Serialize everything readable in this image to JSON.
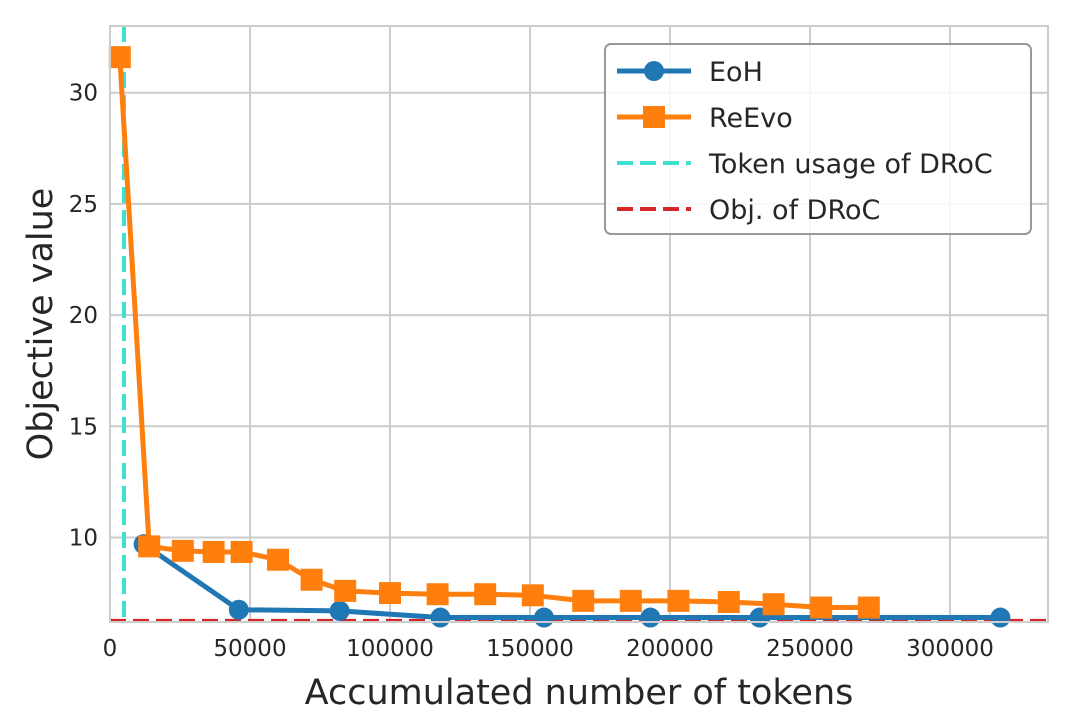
{
  "chart_data": {
    "type": "line",
    "title": "",
    "xlabel": "Accumulated number of tokens",
    "ylabel": "Objective value",
    "xlim": [
      0,
      335000
    ],
    "ylim": [
      6.2,
      33
    ],
    "grid": true,
    "legend_position": "top-right",
    "x_ticks": [
      0,
      50000,
      100000,
      150000,
      200000,
      250000,
      300000
    ],
    "y_ticks": [
      10,
      15,
      20,
      25,
      30
    ],
    "series": [
      {
        "name": "EoH",
        "color": "#1f77b4",
        "marker": "circle",
        "x": [
          12000,
          46000,
          82000,
          118000,
          155000,
          193000,
          232000,
          318000
        ],
        "y": [
          9.7,
          6.75,
          6.7,
          6.4,
          6.4,
          6.4,
          6.4,
          6.4
        ]
      },
      {
        "name": "ReEvo",
        "color": "#ff7f0e",
        "marker": "square",
        "x": [
          3500,
          14000,
          26000,
          37000,
          47000,
          60000,
          72000,
          84000,
          100000,
          117000,
          134000,
          151000,
          169000,
          186000,
          203000,
          221000,
          237000,
          254000,
          271000
        ],
        "y": [
          31.6,
          9.6,
          9.4,
          9.35,
          9.35,
          9.0,
          8.1,
          7.6,
          7.5,
          7.45,
          7.45,
          7.4,
          7.15,
          7.15,
          7.15,
          7.1,
          7.0,
          6.85,
          6.85
        ]
      }
    ],
    "reference_lines": [
      {
        "name": "Token usage of DRoC",
        "orientation": "vertical",
        "value": 5000,
        "color": "#40e0d0",
        "style": "dashed"
      },
      {
        "name": "Obj. of DRoC",
        "orientation": "horizontal",
        "value": 6.25,
        "color": "#d62728",
        "style": "dashed"
      }
    ]
  }
}
